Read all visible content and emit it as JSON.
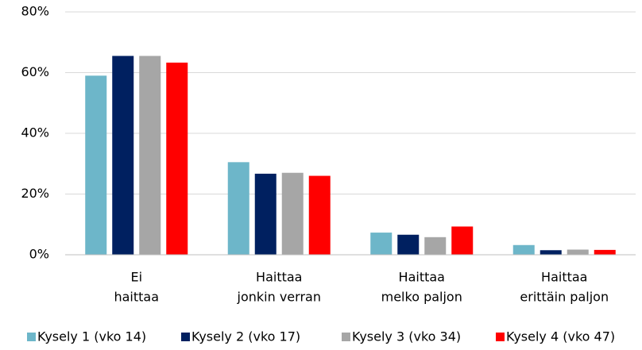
{
  "chart_data": {
    "type": "bar",
    "categories": [
      [
        "Ei",
        "haittaa"
      ],
      [
        "Haittaa",
        "jonkin verran"
      ],
      [
        "Haittaa",
        "melko paljon"
      ],
      [
        "Haittaa",
        "erittäin paljon"
      ]
    ],
    "series": [
      {
        "name": "Kysely 1 (vko 14)",
        "color": "#6db6c9",
        "values": [
          59,
          30.5,
          7.3,
          3.2
        ]
      },
      {
        "name": "Kysely 2 (vko 17)",
        "color": "#002060",
        "values": [
          65.5,
          26.7,
          6.6,
          1.5
        ]
      },
      {
        "name": "Kysely 3 (vko 34)",
        "color": "#a6a6a6",
        "values": [
          65.5,
          27,
          5.8,
          1.7
        ]
      },
      {
        "name": "Kysely 4 (vko 47)",
        "color": "#ff0000",
        "values": [
          63.3,
          26,
          9.3,
          1.6
        ]
      }
    ],
    "ylim": [
      0,
      80
    ],
    "yticks": [
      {
        "value": 0,
        "label": "0%"
      },
      {
        "value": 20,
        "label": "20%"
      },
      {
        "value": 40,
        "label": "40%"
      },
      {
        "value": 60,
        "label": "60%"
      },
      {
        "value": 80,
        "label": "80%"
      }
    ],
    "grid": true,
    "legend": "bottom"
  }
}
